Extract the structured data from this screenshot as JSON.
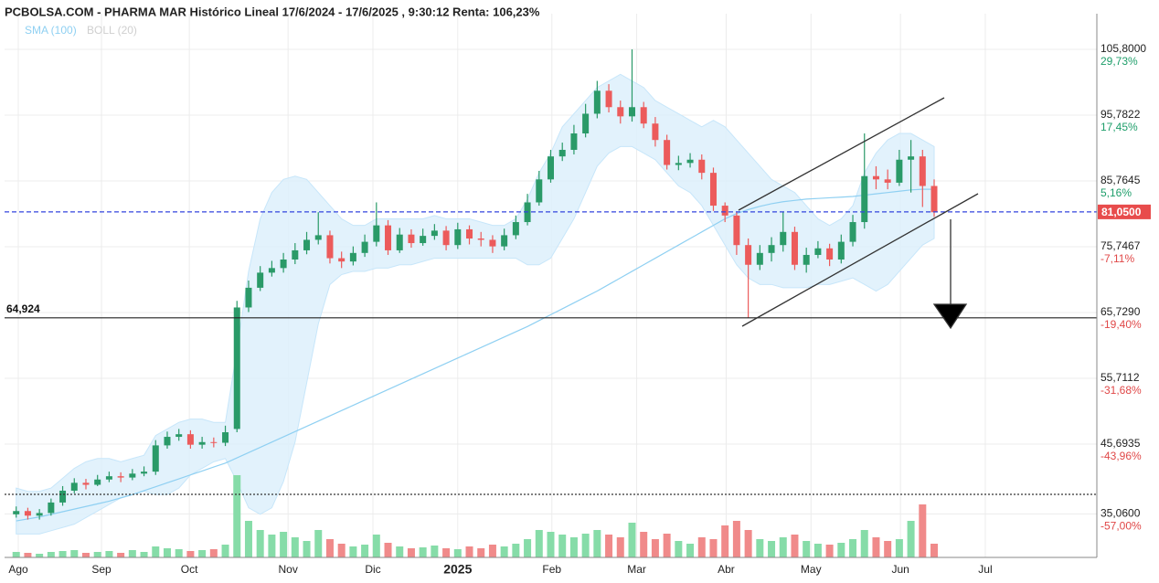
{
  "chart_data": {
    "type": "candlestick",
    "title": "PCBOLSA.COM - PHARMA MAR Histórico Lineal 17/6/2024 - 17/6/2025 , 9:30:12 Renta: 106,23%",
    "legend": [
      {
        "name": "SMA (100)",
        "color": "#8fd0f2"
      },
      {
        "name": "BOLL (20)",
        "color": "#cfcfcf"
      }
    ],
    "xlim": [
      -1,
      93
    ],
    "xticks": [
      {
        "value": 0.18,
        "label": "Ago"
      },
      {
        "value": 7.34,
        "label": "Sep"
      },
      {
        "value": 14.9,
        "label": "Oct"
      },
      {
        "value": 23.4,
        "label": "Nov"
      },
      {
        "value": 30.7,
        "label": "Dic"
      },
      {
        "value": 38.0,
        "label": "2025",
        "bold": true
      },
      {
        "value": 46.1,
        "label": "Feb"
      },
      {
        "value": 53.4,
        "label": "Mar"
      },
      {
        "value": 61.1,
        "label": "Abr"
      },
      {
        "value": 68.4,
        "label": "May"
      },
      {
        "value": 76.1,
        "label": "Jun"
      },
      {
        "value": 83.4,
        "label": "Jul"
      }
    ],
    "ylim": [
      28.44,
      111.23
    ],
    "yticks": [
      {
        "value": 105.8,
        "label": "105,8000",
        "change": "29,73%",
        "change_color": "#1e9e6a"
      },
      {
        "value": 95.7822,
        "label": "95,7822",
        "change": "17,45%",
        "change_color": "#1e9e6a"
      },
      {
        "value": 85.7645,
        "label": "85,7645",
        "change": "5,16%",
        "change_color": "#1e9e6a"
      },
      {
        "value": 75.7467,
        "label": "75,7467",
        "change": "-7,11%",
        "change_color": "#e04848"
      },
      {
        "value": 65.729,
        "label": "65,7290",
        "change": "-19,40%",
        "change_color": "#e04848"
      },
      {
        "value": 55.7112,
        "label": "55,7112",
        "change": "-31,68%",
        "change_color": "#e04848"
      },
      {
        "value": 45.6935,
        "label": "45,6935",
        "change": "-43,96%",
        "change_color": "#e04848"
      },
      {
        "value": 35.06,
        "label": "35,0600",
        "change": "-57,00%",
        "change_color": "#e04848"
      }
    ],
    "grid": true,
    "up_color": "#2a9a68",
    "down_color": "#ec5b5b",
    "vol_up_color": "#86dca8",
    "vol_down_color": "#f08a8a",
    "open": [
      35.0,
      35.5,
      34.8,
      35.2,
      36.8,
      38.6,
      39.8,
      39.5,
      40.3,
      40.8,
      40.6,
      41.2,
      41.5,
      45.5,
      46.8,
      47.2,
      45.6,
      46.0,
      45.9,
      48.0,
      66.5,
      69.5,
      71.8,
      72.5,
      73.8,
      75.2,
      76.8,
      77.5,
      74.0,
      73.5,
      74.8,
      76.5,
      79.0,
      75.2,
      77.6,
      76.3,
      77.4,
      78.2,
      76.0,
      78.4,
      77.0,
      76.8,
      75.8,
      77.5,
      79.5,
      82.5,
      86.0,
      89.5,
      90.5,
      93.0,
      96.0,
      99.5,
      97.0,
      95.6,
      97.0,
      94.5,
      92.0,
      88.2,
      88.5,
      89.0,
      87.0,
      82.0,
      80.5,
      76.0,
      73.0,
      74.8,
      76.0,
      78.0,
      73.0,
      74.5,
      75.5,
      73.8,
      76.5,
      79.5,
      86.5,
      86.0,
      85.5,
      89.0,
      89.5,
      85.0
    ],
    "high": [
      36.2,
      36.0,
      35.8,
      37.4,
      39.3,
      40.5,
      40.4,
      41.0,
      41.5,
      41.4,
      41.9,
      42.3,
      46.3,
      47.6,
      48.0,
      47.8,
      46.8,
      46.7,
      48.5,
      67.5,
      70.6,
      72.8,
      73.6,
      74.8,
      76.3,
      78.0,
      81.0,
      78.2,
      75.0,
      75.8,
      77.6,
      82.5,
      79.8,
      78.6,
      78.4,
      78.5,
      79.2,
      78.9,
      79.4,
      79.0,
      78.0,
      77.5,
      78.5,
      80.5,
      83.8,
      87.3,
      90.5,
      91.6,
      94.3,
      97.5,
      101.0,
      100.5,
      98.0,
      105.8,
      97.8,
      95.5,
      92.8,
      89.6,
      90.0,
      89.8,
      87.8,
      82.5,
      81.0,
      77.0,
      76.0,
      77.2,
      81.0,
      78.8,
      75.6,
      76.6,
      76.2,
      77.6,
      80.6,
      93.0,
      88.0,
      87.5,
      90.5,
      92.0,
      90.5,
      86.0
    ],
    "low": [
      34.5,
      34.2,
      34.2,
      34.8,
      36.3,
      38.2,
      38.8,
      39.3,
      39.9,
      39.9,
      40.2,
      40.8,
      41.0,
      45.0,
      46.2,
      45.0,
      45.0,
      45.2,
      45.4,
      47.5,
      65.8,
      69.0,
      71.2,
      71.8,
      73.1,
      74.6,
      76.1,
      73.2,
      72.5,
      72.9,
      74.2,
      75.8,
      74.5,
      74.8,
      75.6,
      75.9,
      76.8,
      75.2,
      75.4,
      76.1,
      75.8,
      74.8,
      75.2,
      76.9,
      79.0,
      82.0,
      85.5,
      88.8,
      89.8,
      92.4,
      95.3,
      96.2,
      94.5,
      94.8,
      93.8,
      91.0,
      87.5,
      87.4,
      87.8,
      86.0,
      81.2,
      79.5,
      74.5,
      64.924,
      72.2,
      73.5,
      75.0,
      72.2,
      71.8,
      74.0,
      72.8,
      73.2,
      75.8,
      78.5,
      84.5,
      84.5,
      85.0,
      84.0,
      81.8,
      80.3
    ],
    "close": [
      35.5,
      34.8,
      35.2,
      36.8,
      38.6,
      39.8,
      39.5,
      40.3,
      40.8,
      40.6,
      41.2,
      41.5,
      45.5,
      46.8,
      47.2,
      45.6,
      46.0,
      45.9,
      47.5,
      66.5,
      69.5,
      71.8,
      72.5,
      73.8,
      75.2,
      76.8,
      77.5,
      74.0,
      73.5,
      74.8,
      76.5,
      79.0,
      75.2,
      77.6,
      76.3,
      77.4,
      78.2,
      76.0,
      78.4,
      77.0,
      76.8,
      75.8,
      77.5,
      79.5,
      82.5,
      86.0,
      89.5,
      90.5,
      93.0,
      96.0,
      99.5,
      97.0,
      95.6,
      97.0,
      94.5,
      92.0,
      88.2,
      88.5,
      89.0,
      87.0,
      82.0,
      80.5,
      76.0,
      73.0,
      74.8,
      76.0,
      78.0,
      73.0,
      74.5,
      75.5,
      73.8,
      76.5,
      79.5,
      86.5,
      86.0,
      85.5,
      89.0,
      89.5,
      85.0,
      81.0
    ],
    "volume_lim": [
      0,
      100
    ],
    "volume": [
      6,
      5,
      4,
      6,
      7,
      8,
      5,
      6,
      7,
      5,
      8,
      6,
      12,
      10,
      9,
      7,
      8,
      9,
      14,
      90,
      40,
      30,
      25,
      28,
      22,
      18,
      30,
      20,
      15,
      12,
      14,
      25,
      16,
      12,
      10,
      11,
      13,
      10,
      9,
      12,
      10,
      14,
      12,
      15,
      20,
      30,
      28,
      25,
      22,
      26,
      30,
      25,
      22,
      38,
      28,
      20,
      26,
      18,
      15,
      22,
      20,
      35,
      40,
      30,
      20,
      18,
      22,
      25,
      18,
      15,
      14,
      16,
      20,
      30,
      22,
      18,
      20,
      40,
      58,
      15
    ],
    "sma100": [
      34.0,
      34.3,
      34.6,
      35.0,
      35.4,
      35.8,
      36.2,
      36.6,
      37.0,
      37.5,
      38.0,
      38.6,
      39.2,
      39.8,
      40.4,
      41.0,
      41.6,
      42.2,
      42.8,
      43.6,
      44.4,
      45.2,
      46.0,
      46.8,
      47.6,
      48.4,
      49.2,
      50.0,
      50.8,
      51.6,
      52.4,
      53.2,
      54.0,
      54.8,
      55.6,
      56.4,
      57.2,
      58.0,
      58.8,
      59.6,
      60.4,
      61.2,
      62.0,
      62.8,
      63.6,
      64.5,
      65.4,
      66.3,
      67.2,
      68.1,
      69.0,
      70.0,
      71.0,
      72.0,
      73.0,
      74.0,
      75.0,
      76.0,
      77.0,
      78.0,
      79.0,
      80.0,
      80.8,
      81.4,
      81.9,
      82.3,
      82.6,
      82.8,
      83.0,
      83.1,
      83.2,
      83.3,
      83.4,
      83.6,
      83.8,
      84.0,
      84.2,
      84.4,
      84.5,
      84.5
    ],
    "boll_upper": [
      39,
      38.5,
      38.5,
      39,
      40.5,
      42,
      43,
      43.5,
      43.5,
      43,
      43.5,
      44,
      47,
      48,
      49,
      49.5,
      49.5,
      49,
      49,
      60,
      72,
      80,
      84,
      86,
      86.5,
      86,
      84,
      82,
      80,
      79,
      79,
      80,
      80,
      80,
      80,
      80,
      80.5,
      80,
      80,
      80,
      79.5,
      79,
      79,
      80,
      83,
      87,
      90,
      94,
      96,
      98,
      100,
      101,
      102,
      101,
      100,
      98,
      97,
      96,
      95,
      94,
      95,
      94,
      92,
      90,
      88,
      86,
      85,
      84,
      82,
      80,
      79,
      80,
      82,
      87,
      90,
      92,
      93,
      93,
      92,
      91
    ],
    "boll_lower": [
      32,
      32,
      32,
      32.5,
      33,
      33.5,
      34.5,
      35.5,
      36.5,
      37.5,
      38,
      38.5,
      38,
      38,
      39,
      41,
      42,
      43,
      43.5,
      40,
      36,
      35,
      36,
      40,
      46,
      55,
      64,
      70,
      71.5,
      72,
      72,
      72.5,
      72.5,
      73,
      73,
      73.5,
      74,
      74,
      74,
      74,
      74,
      74,
      74,
      74,
      73,
      73,
      74,
      77,
      80,
      84,
      88,
      90,
      91,
      91,
      90,
      89,
      87,
      85,
      84,
      82,
      79,
      76,
      73,
      71,
      70,
      70,
      69.5,
      69.5,
      69.5,
      70,
      70,
      70.5,
      71,
      70,
      69,
      70,
      72,
      74,
      76,
      77
    ],
    "hlines": [
      {
        "value": 81.05,
        "label": "81,0500",
        "style": "dashed",
        "color": "#3344dd",
        "tag_color": "#e84c4c"
      },
      {
        "value": 64.924,
        "label": "64,924",
        "style": "solid",
        "color": "#222222"
      },
      {
        "value": 38.04,
        "style": "dotted",
        "color": "#333333"
      }
    ]
  }
}
